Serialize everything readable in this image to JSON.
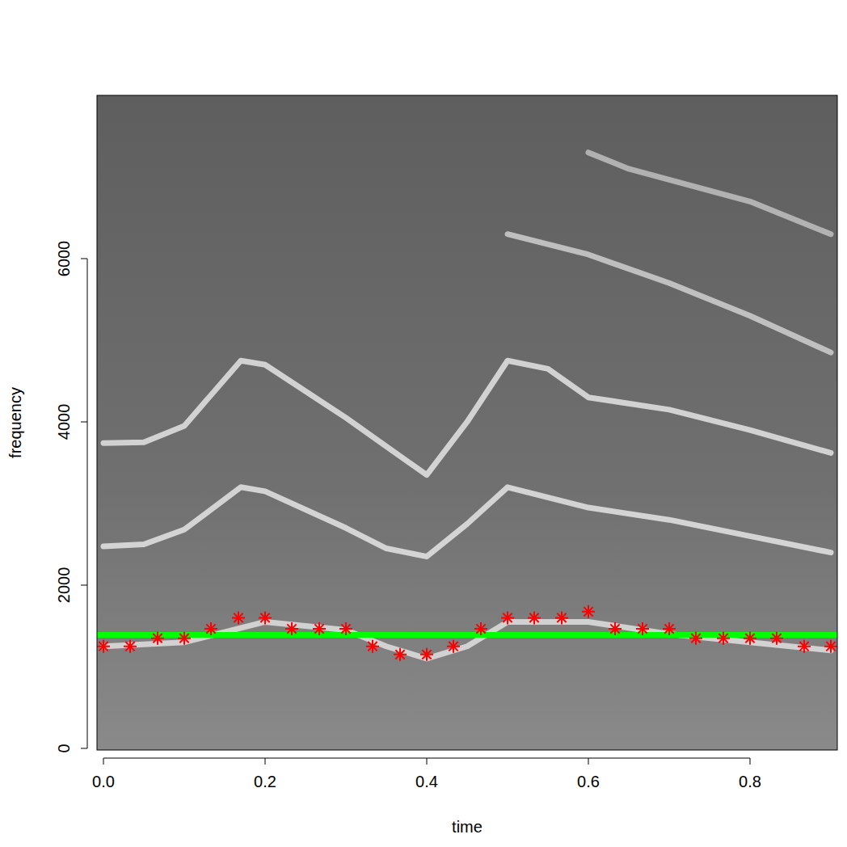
{
  "chart_data": {
    "type": "scatter",
    "x_label": "time",
    "y_label": "frequency",
    "xlim": [
      -0.008,
      0.908
    ],
    "ylim": [
      -20,
      8000
    ],
    "xticks": [
      {
        "value": 0,
        "label": "0.0"
      },
      0.2,
      0.4,
      0.6,
      0.8
    ],
    "yticks": [
      0,
      2000,
      4000,
      6000
    ],
    "series": [
      {
        "type": "line",
        "color": "#eeeeee",
        "x": [
          0,
          0.1,
          0.2,
          0.3,
          0.35,
          0.4,
          0.45,
          0.5,
          0.6,
          0.7,
          0.8,
          0.9
        ],
        "values": [
          1250,
          1300,
          1550,
          1450,
          1250,
          1100,
          1250,
          1550,
          1550,
          1400,
          1300,
          1200
        ]
      },
      {
        "type": "line",
        "color": "#f4f4f4",
        "x": [
          0,
          0.05,
          0.1,
          0.17,
          0.2,
          0.3,
          0.35,
          0.4,
          0.45,
          0.5,
          0.6,
          0.7,
          0.8,
          0.9
        ],
        "values": [
          2475,
          2500,
          2680,
          3200,
          3150,
          2700,
          2450,
          2350,
          2750,
          3200,
          2950,
          2800,
          2600,
          2400
        ]
      },
      {
        "type": "line",
        "color": "#f4f4f4",
        "x": [
          0,
          0.05,
          0.1,
          0.17,
          0.2,
          0.3,
          0.35,
          0.4,
          0.45,
          0.5,
          0.55,
          0.6,
          0.7,
          0.8,
          0.9
        ],
        "values": [
          3740,
          3750,
          3950,
          4750,
          4700,
          4050,
          3700,
          3350,
          4000,
          4750,
          4650,
          4300,
          4150,
          3900,
          3620
        ]
      },
      {
        "type": "line",
        "color": "#dddddd",
        "x": [
          0.5,
          0.6,
          0.7,
          0.8,
          0.9
        ],
        "values": [
          6300,
          6050,
          5700,
          5300,
          4850
        ]
      },
      {
        "type": "line",
        "color": "#cccccc",
        "x": [
          0.6,
          0.65,
          0.8,
          0.9
        ],
        "values": [
          7300,
          7100,
          6700,
          6300
        ]
      },
      {
        "type": "scatter",
        "color": "#ff0000",
        "marker": "asterisk",
        "x": [
          0,
          0.033,
          0.067,
          0.1,
          0.133,
          0.167,
          0.2,
          0.233,
          0.267,
          0.3,
          0.333,
          0.367,
          0.4,
          0.433,
          0.467,
          0.5,
          0.533,
          0.567,
          0.6,
          0.633,
          0.667,
          0.7,
          0.733,
          0.767,
          0.8,
          0.833,
          0.867,
          0.9
        ],
        "values": [
          1250,
          1250,
          1350,
          1350,
          1465,
          1600,
          1600,
          1465,
          1465,
          1465,
          1250,
          1150,
          1150,
          1250,
          1465,
          1600,
          1600,
          1600,
          1675,
          1465,
          1465,
          1465,
          1350,
          1350,
          1350,
          1350,
          1250,
          1250
        ]
      },
      {
        "type": "hline",
        "color": "#00ff00",
        "values": [
          1390
        ]
      }
    ]
  }
}
